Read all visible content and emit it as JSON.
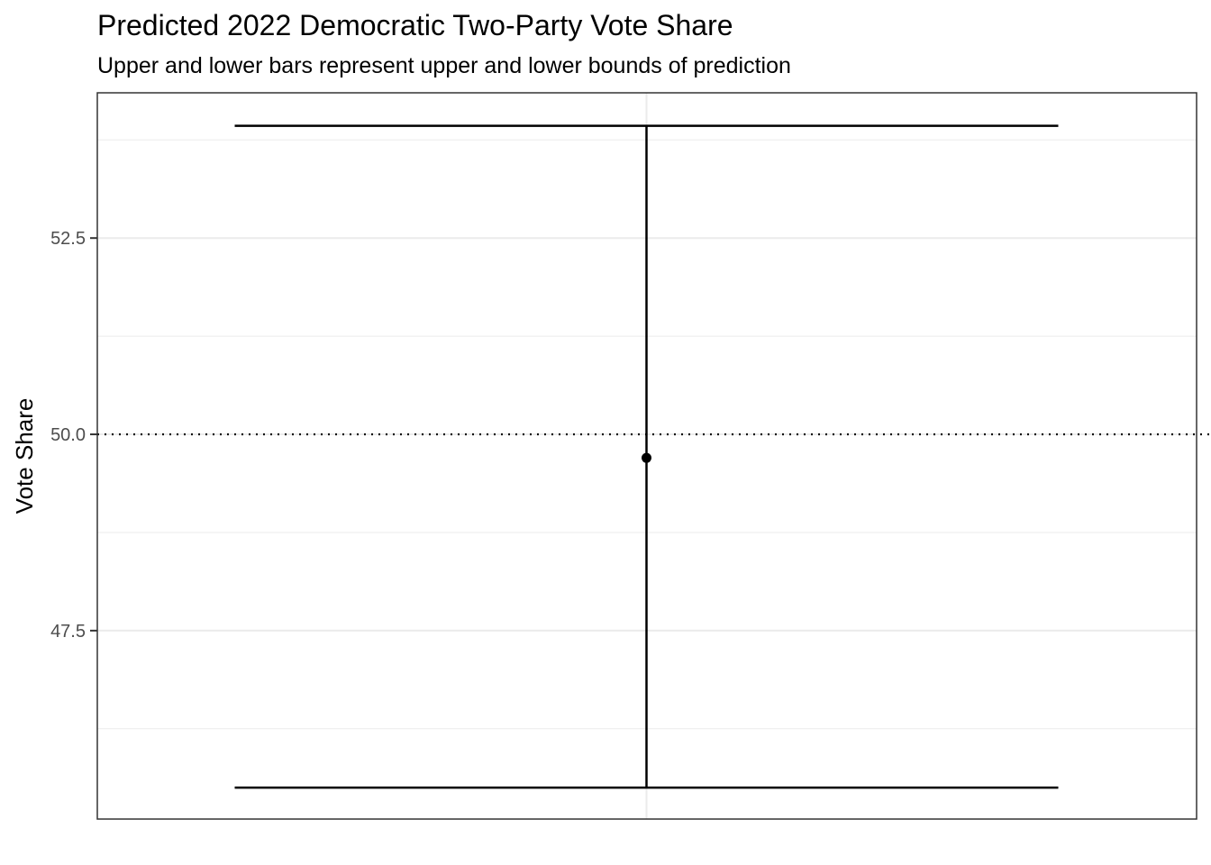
{
  "chart_data": {
    "type": "errorbar",
    "title": "Predicted 2022 Democratic Two-Party Vote Share",
    "subtitle": "Upper and lower bars represent upper and lower bounds of prediction",
    "xlabel": "",
    "ylabel": "Vote Share",
    "ylim": [
      45.1,
      54.35
    ],
    "y_ticks": [
      47.5,
      50.0,
      52.5
    ],
    "y_tick_labels": [
      "47.5",
      "50.0",
      "52.5"
    ],
    "y_minor_grid": [
      46.25,
      48.75,
      51.25,
      53.75
    ],
    "grid": true,
    "reference_line": {
      "y": 50.0,
      "style": "dotted"
    },
    "points": [
      {
        "estimate": 49.7,
        "lower": 45.5,
        "upper": 53.93
      }
    ],
    "colors": {
      "grid_major": "#ebebeb",
      "grid_minor": "#ebebeb",
      "panel_border": "#333333",
      "mark": "#000000"
    }
  }
}
